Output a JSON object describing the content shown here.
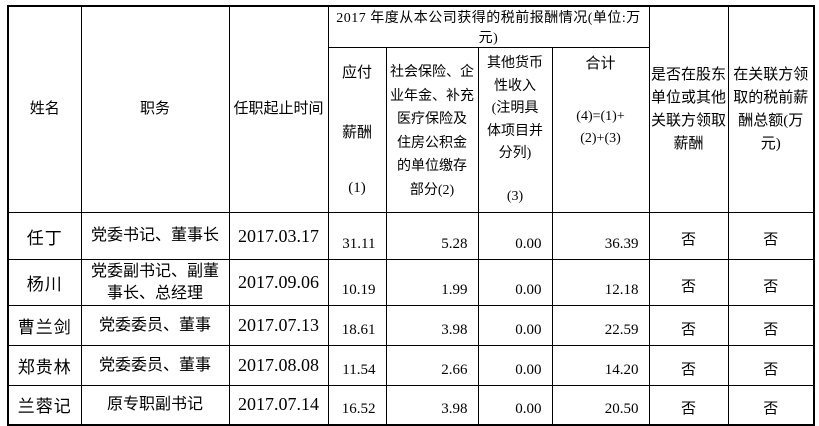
{
  "table": {
    "group_title": "2017 年度从本公司获得的税前报酬情况(单位:万元)",
    "columns": {
      "name": "姓名",
      "position": "职务",
      "term": "任职起止时间",
      "payable_lines": [
        "应付",
        "薪酬",
        "(1)"
      ],
      "social_lines": [
        "社会保险、企",
        "业年金、补充",
        "医疗保险及",
        "住房公积金",
        "的单位缴存",
        "部分(2)"
      ],
      "other_lines": [
        "其他货币",
        "性收入",
        "(注明具",
        "体项目并",
        "分列)"
      ],
      "other_note": "(3)",
      "total_label": "合计",
      "total_formula_lines": [
        "(4)=(1)+",
        "(2)+(3)"
      ],
      "related_pay_lines": [
        "是否在股东",
        "单位或其他",
        "关联方领取",
        "薪酬"
      ],
      "related_amount_lines": [
        "在关联方领",
        "取的税前薪",
        "酬总额(万",
        "元)"
      ]
    },
    "rows": [
      [
        "任丁",
        "党委书记、董事长",
        "2017.03.17",
        "31.11",
        "5.28",
        "0.00",
        "36.39",
        "否",
        "否"
      ],
      [
        "杨川",
        "党委副书记、副董事长、总经理",
        "2017.09.06",
        "10.19",
        "1.99",
        "0.00",
        "12.18",
        "否",
        "否"
      ],
      [
        "曹兰剑",
        "党委委员、董事",
        "2017.07.13",
        "18.61",
        "3.98",
        "0.00",
        "22.59",
        "否",
        "否"
      ],
      [
        "郑贵林",
        "党委委员、董事",
        "2017.08.08",
        "11.54",
        "2.66",
        "0.00",
        "14.20",
        "否",
        "否"
      ],
      [
        "兰蓉记",
        "原专职副书记",
        "2017.07.14",
        "16.52",
        "3.98",
        "0.00",
        "20.50",
        "否",
        "否"
      ]
    ]
  },
  "colors": {
    "border": "#000000",
    "text": "#000000",
    "background": "#ffffff"
  }
}
